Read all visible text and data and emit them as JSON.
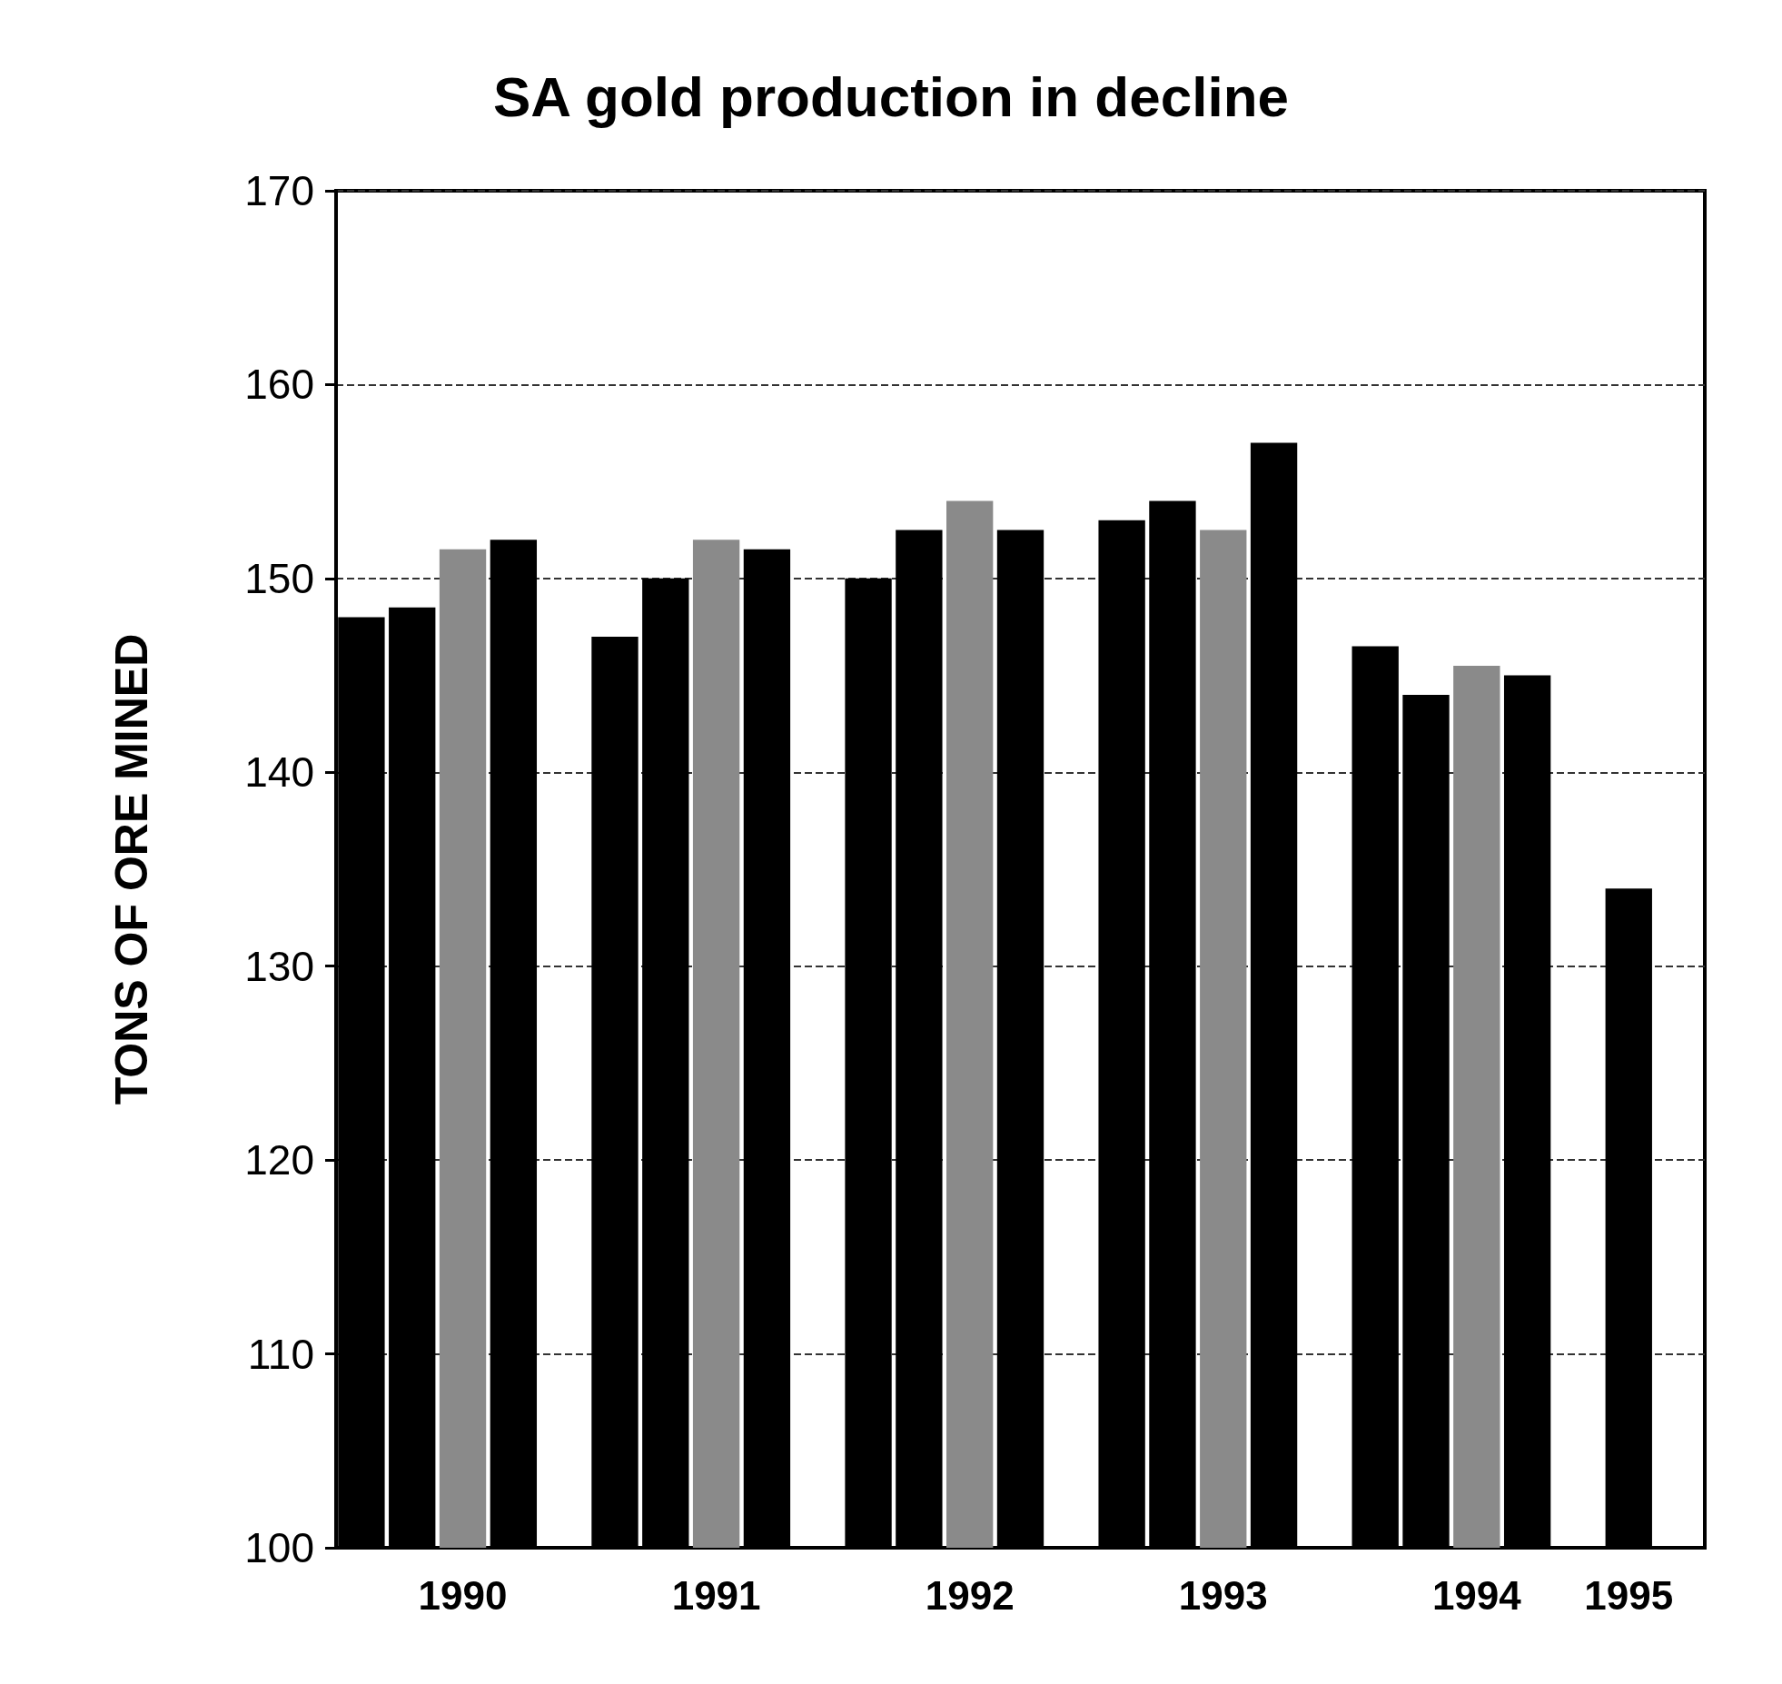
{
  "chart_data": {
    "type": "bar",
    "title": "SA gold production in decline",
    "ylabel": "TONS OF ORE MINED",
    "categories": [
      null,
      null,
      "1990",
      null,
      null,
      null,
      null,
      "1991",
      null,
      null,
      null,
      null,
      "1992",
      null,
      null,
      null,
      null,
      "1993",
      null,
      null,
      null,
      null,
      "1994",
      null,
      null,
      "1995",
      null
    ],
    "values": [
      148,
      148.5,
      151.5,
      152,
      null,
      147,
      150,
      152,
      151.5,
      null,
      150,
      152.5,
      154,
      152.5,
      null,
      153,
      154,
      152.5,
      157,
      null,
      146.5,
      144,
      145.5,
      145,
      null,
      134,
      null
    ],
    "colors": [
      "#000000",
      "#000000",
      "#8a8a8a",
      "#000000",
      "#ffffff",
      "#000000",
      "#000000",
      "#8a8a8a",
      "#000000",
      "#ffffff",
      "#000000",
      "#000000",
      "#8a8a8a",
      "#000000",
      "#ffffff",
      "#000000",
      "#000000",
      "#8a8a8a",
      "#000000",
      "#ffffff",
      "#000000",
      "#000000",
      "#8a8a8a",
      "#000000",
      "#ffffff",
      "#000000",
      "#ffffff"
    ],
    "ylim": [
      100,
      170
    ],
    "yticks": [
      100,
      110,
      120,
      130,
      140,
      150,
      160,
      170
    ],
    "grid": "y"
  }
}
